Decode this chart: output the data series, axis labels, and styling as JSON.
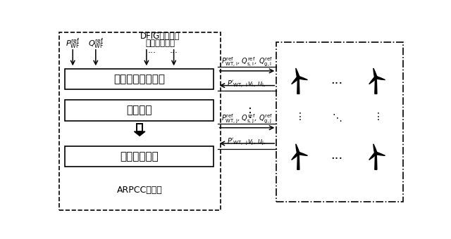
{
  "bg_color": "#ffffff",
  "box1_label": "最优损耗目标函数",
  "box2_label": "约束条件",
  "box3_label": "二次规划求解",
  "bottom_label": "ARPCC控制器",
  "dfig_label1": "DFIG电机参数",
  "dfig_label2": "线路电缆参数",
  "pwf_label": "$P^{\\mathrm{ref}}_{\\mathrm{WF}}$",
  "qwf_label": "$Q^{\\mathrm{ref}}_{\\mathrm{WF}}$",
  "row_i_out": "$P^{\\mathrm{ref}}_{\\mathrm{WT,i}}$, $Q^{\\mathrm{ref}}_{\\mathrm{s,i}}$, $Q^{\\mathrm{ref}}_{\\mathrm{g,i}}$",
  "row_i_in": "$P'_{\\mathrm{WT,}}$ $_{\\mathrm{i}}v_{\\mathrm{i}}$, $u_{\\mathrm{i}}$,",
  "row_j_out": "$P^{\\mathrm{ref}}_{\\mathrm{WT,j}}$, $Q^{\\mathrm{ref}}_{\\mathrm{s,j}}$, $Q^{\\mathrm{ref}}_{\\mathrm{g,j}}$",
  "row_j_in": "$P'_{\\mathrm{WT,}}$ $_{\\mathrm{j}}v_{\\mathrm{j}}$, $u_{\\mathrm{j}}$,"
}
